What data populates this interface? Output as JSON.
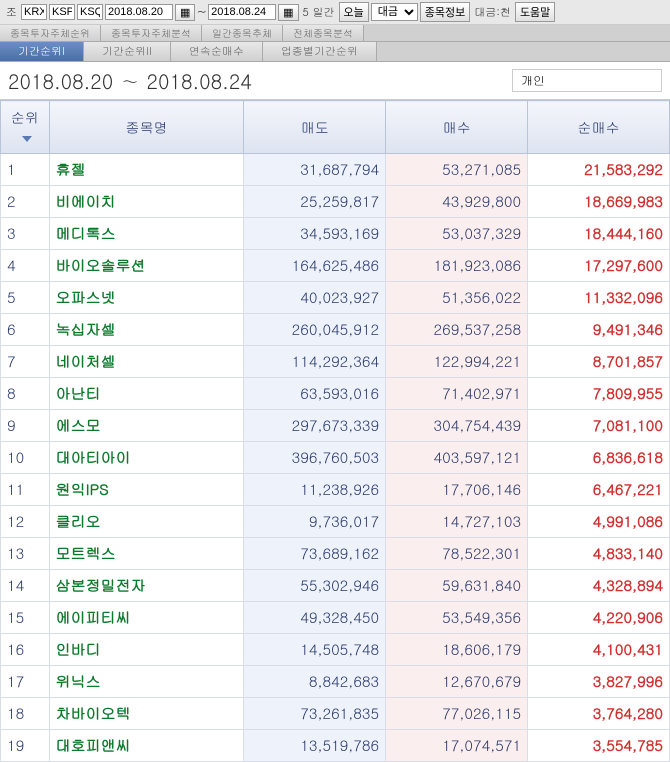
{
  "toolbar": {
    "market_label": "조",
    "market_codes": [
      "KRX",
      "KSP",
      "KSQ"
    ],
    "date_from": "2018.08.20",
    "date_to": "2018.08.24",
    "days_label": "5 일간",
    "today_label": "오늘",
    "amount_label": "대금",
    "stock_info_label": "종목정보",
    "unit_label": "대금:천",
    "help_label": "도움말",
    "arrow": "~"
  },
  "subtabs": {
    "items": [
      {
        "label": "종목투자주체순위"
      },
      {
        "label": "종목투자주체분석"
      },
      {
        "label": "일간종목추체"
      },
      {
        "label": "전체종목분석"
      }
    ]
  },
  "tabs": {
    "items": [
      {
        "label": "기간순위I",
        "active": true
      },
      {
        "label": "기간순위II"
      },
      {
        "label": "연속순매수"
      },
      {
        "label": "업종별기간순위"
      }
    ]
  },
  "header": {
    "date_range": "2018.08.20 ∼ 2018.08.24",
    "filter": "개인"
  },
  "table": {
    "columns": {
      "rank": "순위",
      "name": "종목명",
      "sell": "매도",
      "buy": "매수",
      "net": "순매수"
    },
    "colors": {
      "header_bg_top": "#f4f6fb",
      "header_bg_bottom": "#dde3f0",
      "header_text": "#2a3a6a",
      "border": "#b8c4d8",
      "sell_bg": "#eef2fb",
      "buy_bg": "#fbeeee",
      "name_color": "#0a7a2a",
      "net_color": "#d03030",
      "rank_color": "#2a3a6a"
    },
    "rows": [
      {
        "rank": "1",
        "name": "휴젤",
        "sell": "31,687,794",
        "buy": "53,271,085",
        "net": "21,583,292"
      },
      {
        "rank": "2",
        "name": "비에이치",
        "sell": "25,259,817",
        "buy": "43,929,800",
        "net": "18,669,983"
      },
      {
        "rank": "3",
        "name": "메디톡스",
        "sell": "34,593,169",
        "buy": "53,037,329",
        "net": "18,444,160"
      },
      {
        "rank": "4",
        "name": "바이오솔루션",
        "sell": "164,625,486",
        "buy": "181,923,086",
        "net": "17,297,600"
      },
      {
        "rank": "5",
        "name": "오파스넷",
        "sell": "40,023,927",
        "buy": "51,356,022",
        "net": "11,332,096"
      },
      {
        "rank": "6",
        "name": "녹십자셀",
        "sell": "260,045,912",
        "buy": "269,537,258",
        "net": "9,491,346"
      },
      {
        "rank": "7",
        "name": "네이처셀",
        "sell": "114,292,364",
        "buy": "122,994,221",
        "net": "8,701,857"
      },
      {
        "rank": "8",
        "name": "아난티",
        "sell": "63,593,016",
        "buy": "71,402,971",
        "net": "7,809,955"
      },
      {
        "rank": "9",
        "name": "에스모",
        "sell": "297,673,339",
        "buy": "304,754,439",
        "net": "7,081,100"
      },
      {
        "rank": "10",
        "name": "대아티아이",
        "sell": "396,760,503",
        "buy": "403,597,121",
        "net": "6,836,618"
      },
      {
        "rank": "11",
        "name": "원익IPS",
        "sell": "11,238,926",
        "buy": "17,706,146",
        "net": "6,467,221"
      },
      {
        "rank": "12",
        "name": "클리오",
        "sell": "9,736,017",
        "buy": "14,727,103",
        "net": "4,991,086"
      },
      {
        "rank": "13",
        "name": "모트렉스",
        "sell": "73,689,162",
        "buy": "78,522,301",
        "net": "4,833,140"
      },
      {
        "rank": "14",
        "name": "삼본정밀전자",
        "sell": "55,302,946",
        "buy": "59,631,840",
        "net": "4,328,894"
      },
      {
        "rank": "15",
        "name": "에이피티씨",
        "sell": "49,328,450",
        "buy": "53,549,356",
        "net": "4,220,906"
      },
      {
        "rank": "16",
        "name": "인바디",
        "sell": "14,505,748",
        "buy": "18,606,179",
        "net": "4,100,431"
      },
      {
        "rank": "17",
        "name": "위닉스",
        "sell": "8,842,683",
        "buy": "12,670,679",
        "net": "3,827,996"
      },
      {
        "rank": "18",
        "name": "차바이오텍",
        "sell": "73,261,835",
        "buy": "77,026,115",
        "net": "3,764,280"
      },
      {
        "rank": "19",
        "name": "대호피앤씨",
        "sell": "13,519,786",
        "buy": "17,074,571",
        "net": "3,554,785"
      }
    ]
  }
}
